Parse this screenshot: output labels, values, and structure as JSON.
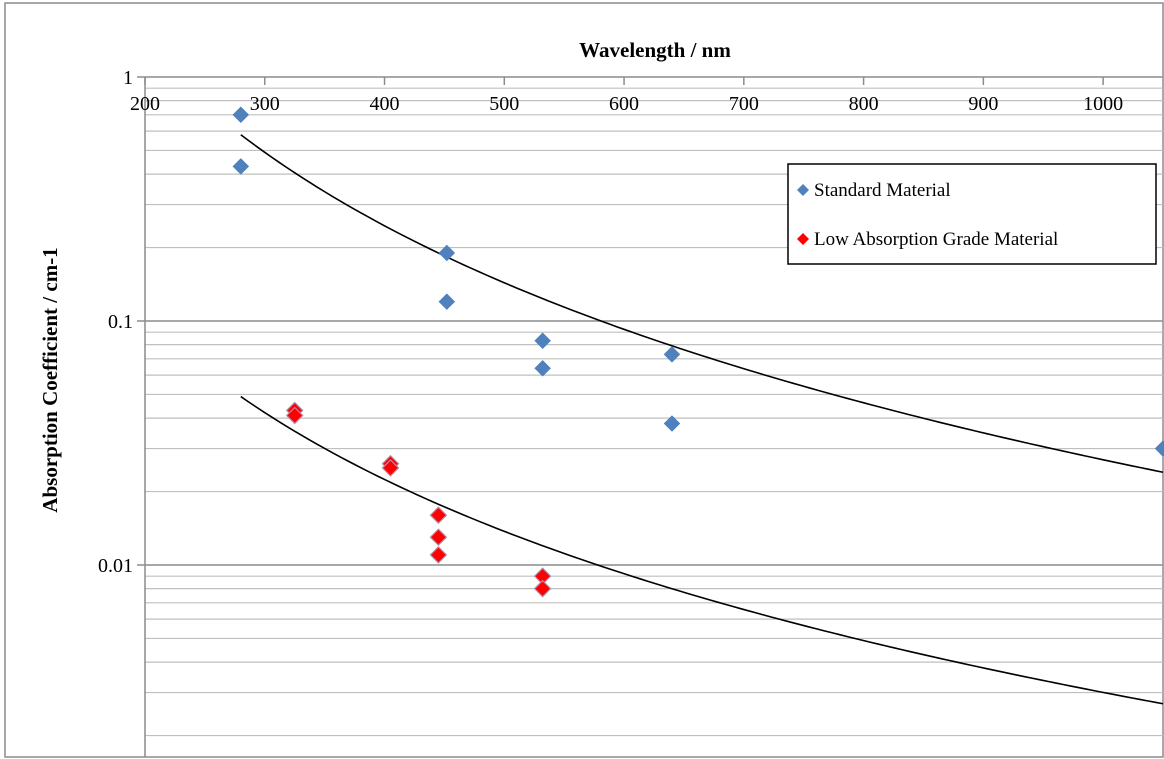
{
  "chart_data": {
    "type": "scatter",
    "title": "",
    "xlabel": "Wavelength / nm",
    "ylabel": "Absorption Coefficient / cm-1",
    "x_axis_position": "top",
    "xlim": [
      200,
      1050
    ],
    "ylim": [
      0.001,
      1
    ],
    "y_scale": "log",
    "x_ticks": [
      200,
      300,
      400,
      500,
      600,
      700,
      800,
      900,
      1000
    ],
    "y_ticks": [
      1,
      0.1,
      0.01
    ],
    "x_tick_labels": [
      "200",
      "300",
      "400",
      "500",
      "600",
      "700",
      "800",
      "900",
      "1000"
    ],
    "y_tick_labels": [
      "1",
      "0.1",
      "0.01"
    ],
    "grid": true,
    "legend_position": "top-right",
    "series": [
      {
        "name": "Standard Material",
        "color": "#4f81bd",
        "marker": "diamond",
        "points": [
          {
            "x": 280,
            "y": 0.7
          },
          {
            "x": 280,
            "y": 0.43
          },
          {
            "x": 452,
            "y": 0.19
          },
          {
            "x": 452,
            "y": 0.12
          },
          {
            "x": 532,
            "y": 0.083
          },
          {
            "x": 532,
            "y": 0.064
          },
          {
            "x": 640,
            "y": 0.073
          },
          {
            "x": 640,
            "y": 0.038
          },
          {
            "x": 1050,
            "y": 0.03
          }
        ]
      },
      {
        "name": "Low Absorption Grade Material",
        "color": "#ff0000",
        "marker": "diamond",
        "points": [
          {
            "x": 325,
            "y": 0.043
          },
          {
            "x": 325,
            "y": 0.041
          },
          {
            "x": 405,
            "y": 0.026
          },
          {
            "x": 405,
            "y": 0.025
          },
          {
            "x": 445,
            "y": 0.016
          },
          {
            "x": 445,
            "y": 0.013
          },
          {
            "x": 445,
            "y": 0.011
          },
          {
            "x": 532,
            "y": 0.009
          },
          {
            "x": 532,
            "y": 0.008
          }
        ]
      }
    ],
    "trendlines": [
      {
        "series": "Standard Material",
        "type": "power",
        "x_range": [
          280,
          1050
        ],
        "y_start": 0.58,
        "y_end": 0.024,
        "color": "#000000"
      },
      {
        "series": "Low Absorption Grade Material",
        "type": "power",
        "x_range": [
          280,
          1050
        ],
        "y_start": 0.049,
        "y_end": 0.0027,
        "color": "#000000"
      }
    ]
  }
}
